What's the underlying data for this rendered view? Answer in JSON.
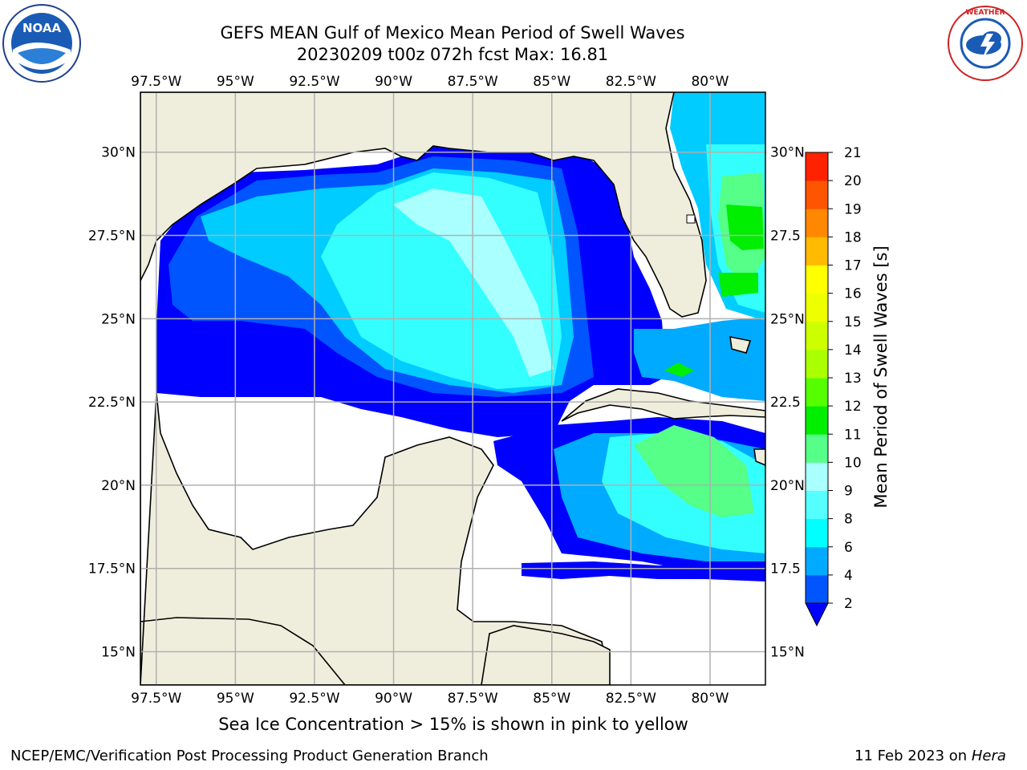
{
  "header": {
    "title_line1": "GEFS MEAN Gulf of Mexico Mean Period of Swell Waves",
    "title_line2": "20230209 t00z 072h fcst   Max: 16.81"
  },
  "logos": {
    "left": "NOAA",
    "right": "NATIONAL WEATHER SERVICE"
  },
  "map": {
    "lon_labels": [
      "97.5°W",
      "95°W",
      "92.5°W",
      "90°W",
      "87.5°W",
      "85°W",
      "82.5°W",
      "80°W"
    ],
    "lons": [
      -97.5,
      -95,
      -92.5,
      -90,
      -87.5,
      -85,
      -82.5,
      -80
    ],
    "lat_labels": [
      "30°N",
      "27.5°N",
      "25°N",
      "22.5°N",
      "20°N",
      "17.5°N",
      "15°N"
    ],
    "lats": [
      30,
      27.5,
      25,
      22.5,
      20,
      17.5,
      15
    ],
    "right_lat_labels": [
      "30°N",
      "27.5",
      "25°N",
      "22.5",
      "20°N",
      "17.5",
      "15°N"
    ],
    "extent": {
      "lon_min": -98,
      "lon_max": -78.25,
      "lat_min": 14,
      "lat_max": 31.8
    },
    "colors": {
      "land": "#efeedd",
      "ocean_nodata": "#ffffff",
      "grid": "#b0b0b0"
    }
  },
  "colorbar": {
    "label": "Mean Period of Swell Waves [s]",
    "ticks": [
      "2",
      "4",
      "6",
      "8",
      "9",
      "10",
      "11",
      "12",
      "13",
      "14",
      "15",
      "16",
      "17",
      "18",
      "19",
      "20",
      "21"
    ],
    "colors": [
      "#0000ff",
      "#0055ff",
      "#00aaff",
      "#00ffff",
      "#55ffff",
      "#aaffff",
      "#55ff88",
      "#00ee00",
      "#55ff00",
      "#aaff00",
      "#ccff00",
      "#eeff00",
      "#ffff00",
      "#ffbb00",
      "#ff8800",
      "#ff5500",
      "#ff2200",
      "#ff0000"
    ]
  },
  "subtitle": "Sea Ice Concentration > 15% is shown in pink to yellow",
  "footer": {
    "left": "NCEP/EMC/Verification Post Processing Product Generation Branch",
    "right_prefix": "11 Feb 2023 on ",
    "right_host": "Hera"
  }
}
